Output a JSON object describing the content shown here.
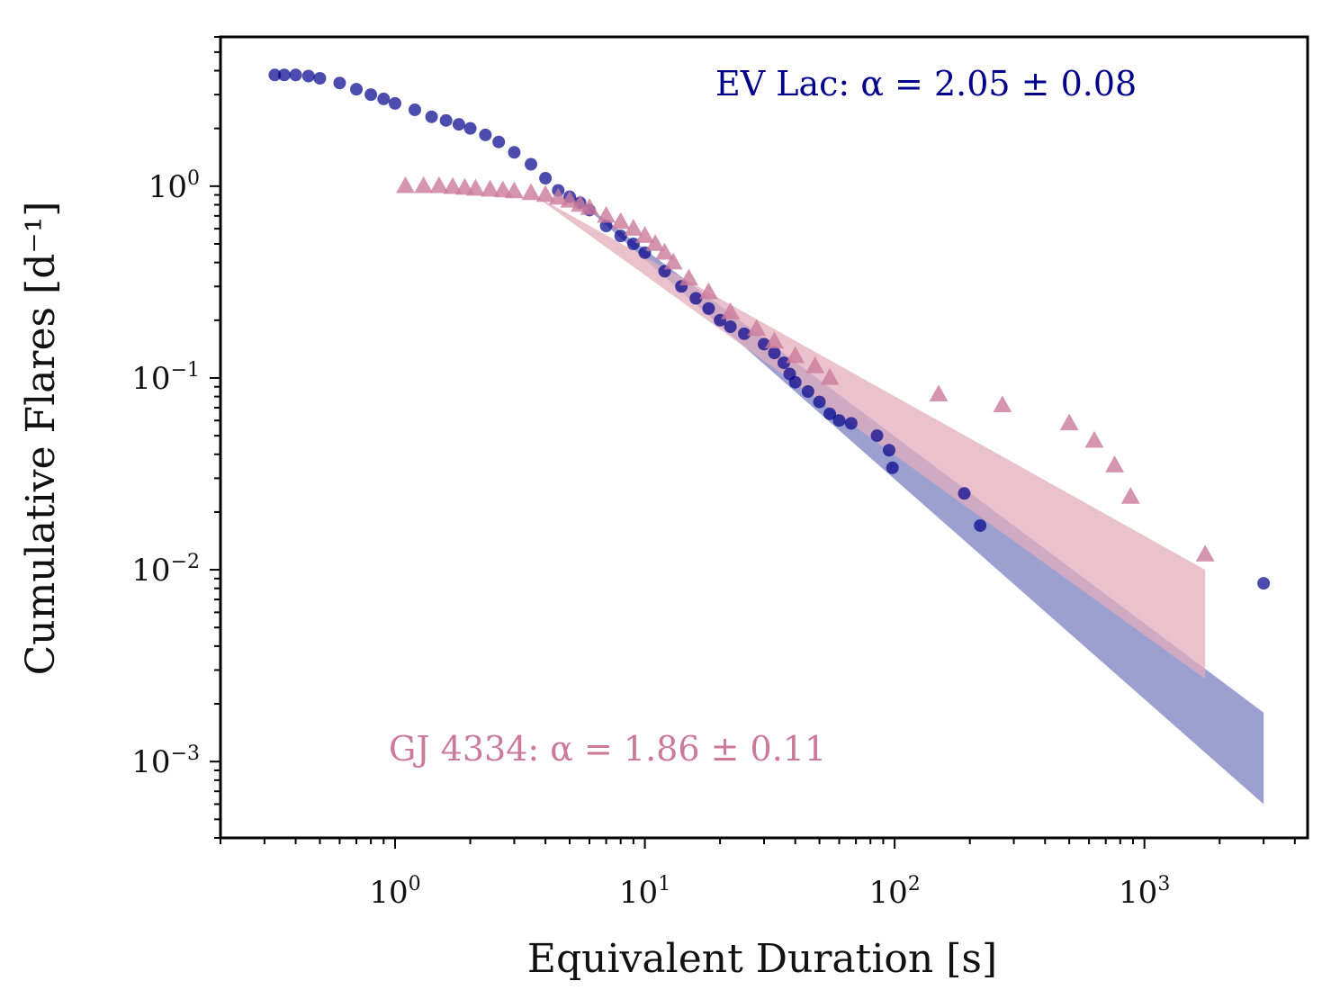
{
  "chart_data": {
    "type": "scatter",
    "xlabel": "Equivalent Duration [s]",
    "ylabel": "Cumulative Flares [d⁻¹]",
    "xscale": "log",
    "yscale": "log",
    "xlim": [
      0.2,
      4500
    ],
    "ylim": [
      0.0004,
      6
    ],
    "x_ticks": [
      {
        "base": "10",
        "exp": "0",
        "value": 1
      },
      {
        "base": "10",
        "exp": "1",
        "value": 10
      },
      {
        "base": "10",
        "exp": "2",
        "value": 100
      },
      {
        "base": "10",
        "exp": "3",
        "value": 1000
      }
    ],
    "y_ticks": [
      {
        "base": "10",
        "exp": "0",
        "value": 1
      },
      {
        "base": "10",
        "exp": "−1",
        "value": 0.1
      },
      {
        "base": "10",
        "exp": "−2",
        "value": 0.01
      },
      {
        "base": "10",
        "exp": "−3",
        "value": 0.001
      }
    ],
    "series": [
      {
        "name": "EV Lac",
        "label": "EV Lac:  α = 2.05 ± 0.08",
        "color": "#00008b",
        "marker": "circle",
        "fit_band": {
          "x": [
            5,
            3000
          ],
          "y_upper": [
            0.92,
            0.0018
          ],
          "y_lower": [
            0.92,
            0.0006
          ],
          "color": "#7b80c0"
        },
        "points": [
          [
            0.33,
            3.8
          ],
          [
            0.36,
            3.8
          ],
          [
            0.4,
            3.8
          ],
          [
            0.45,
            3.75
          ],
          [
            0.5,
            3.65
          ],
          [
            0.6,
            3.45
          ],
          [
            0.7,
            3.2
          ],
          [
            0.8,
            3.0
          ],
          [
            0.9,
            2.85
          ],
          [
            1.0,
            2.7
          ],
          [
            1.2,
            2.5
          ],
          [
            1.4,
            2.3
          ],
          [
            1.6,
            2.2
          ],
          [
            1.8,
            2.1
          ],
          [
            2.0,
            2.0
          ],
          [
            2.3,
            1.85
          ],
          [
            2.6,
            1.7
          ],
          [
            3.0,
            1.5
          ],
          [
            3.5,
            1.3
          ],
          [
            4.0,
            1.1
          ],
          [
            4.5,
            0.95
          ],
          [
            5.0,
            0.88
          ],
          [
            5.5,
            0.82
          ],
          [
            6.0,
            0.75
          ],
          [
            7.0,
            0.62
          ],
          [
            8.0,
            0.55
          ],
          [
            9.0,
            0.5
          ],
          [
            10,
            0.45
          ],
          [
            12,
            0.36
          ],
          [
            14,
            0.3
          ],
          [
            16,
            0.26
          ],
          [
            18,
            0.23
          ],
          [
            20,
            0.2
          ],
          [
            22,
            0.185
          ],
          [
            25,
            0.17
          ],
          [
            30,
            0.15
          ],
          [
            33,
            0.135
          ],
          [
            36,
            0.12
          ],
          [
            38,
            0.105
          ],
          [
            40,
            0.095
          ],
          [
            45,
            0.085
          ],
          [
            50,
            0.075
          ],
          [
            55,
            0.065
          ],
          [
            60,
            0.06
          ],
          [
            67,
            0.058
          ],
          [
            85,
            0.05
          ],
          [
            95,
            0.042
          ],
          [
            98,
            0.034
          ],
          [
            190,
            0.025
          ],
          [
            220,
            0.017
          ],
          [
            3000,
            0.0085
          ]
        ]
      },
      {
        "name": "GJ 4334",
        "label": "GJ 4334:  α = 1.86 ± 0.11",
        "color": "#cc7a9a",
        "marker": "triangle",
        "fit_band": {
          "x": [
            3.5,
            1750
          ],
          "y_upper": [
            0.92,
            0.01
          ],
          "y_lower": [
            0.92,
            0.0027
          ],
          "color": "#e2aebd"
        },
        "points": [
          [
            1.1,
            1.0
          ],
          [
            1.3,
            1.0
          ],
          [
            1.5,
            1.0
          ],
          [
            1.7,
            0.99
          ],
          [
            1.9,
            0.98
          ],
          [
            2.1,
            0.97
          ],
          [
            2.4,
            0.96
          ],
          [
            2.7,
            0.95
          ],
          [
            3.0,
            0.94
          ],
          [
            3.5,
            0.92
          ],
          [
            4.0,
            0.9
          ],
          [
            4.5,
            0.87
          ],
          [
            5.0,
            0.84
          ],
          [
            5.5,
            0.8
          ],
          [
            6.0,
            0.77
          ],
          [
            7.0,
            0.7
          ],
          [
            8.0,
            0.65
          ],
          [
            9.0,
            0.6
          ],
          [
            10,
            0.55
          ],
          [
            11,
            0.5
          ],
          [
            12,
            0.45
          ],
          [
            13,
            0.4
          ],
          [
            15,
            0.33
          ],
          [
            18,
            0.28
          ],
          [
            22,
            0.22
          ],
          [
            28,
            0.18
          ],
          [
            33,
            0.155
          ],
          [
            40,
            0.13
          ],
          [
            48,
            0.115
          ],
          [
            55,
            0.1
          ],
          [
            150,
            0.082
          ],
          [
            270,
            0.072
          ],
          [
            500,
            0.058
          ],
          [
            630,
            0.047
          ],
          [
            760,
            0.035
          ],
          [
            880,
            0.024
          ],
          [
            1750,
            0.012
          ]
        ]
      }
    ]
  }
}
